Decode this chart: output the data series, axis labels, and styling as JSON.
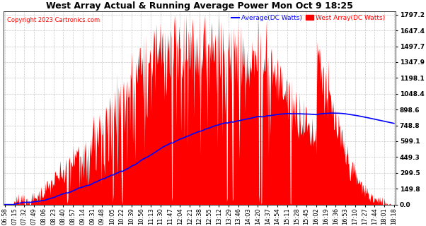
{
  "title": "West Array Actual & Running Average Power Mon Oct 9 18:25",
  "copyright": "Copyright 2023 Cartronics.com",
  "legend_avg": "Average(DC Watts)",
  "legend_west": "West Array(DC Watts)",
  "y_ticks": [
    0.0,
    149.8,
    299.5,
    449.3,
    599.1,
    748.8,
    898.6,
    1048.4,
    1198.1,
    1347.9,
    1497.7,
    1647.4,
    1797.2
  ],
  "ymax": 1797.2,
  "ymin": 0.0,
  "fill_color": "#FF0000",
  "line_color": "#0000FF",
  "bg_color": "#FFFFFF",
  "grid_color": "#BBBBBB",
  "title_color": "#000000",
  "copyright_color": "#FF0000",
  "legend_avg_color": "#0000FF",
  "legend_west_color": "#FF0000",
  "x_tick_labels": [
    "06:58",
    "07:15",
    "07:32",
    "07:49",
    "08:06",
    "08:23",
    "08:40",
    "08:57",
    "09:14",
    "09:31",
    "09:48",
    "10:05",
    "10:22",
    "10:39",
    "10:56",
    "11:13",
    "11:30",
    "11:47",
    "12:04",
    "12:21",
    "12:38",
    "12:55",
    "13:12",
    "13:29",
    "13:46",
    "14:03",
    "14:20",
    "14:37",
    "14:54",
    "15:11",
    "15:28",
    "15:45",
    "16:02",
    "16:19",
    "16:36",
    "16:53",
    "17:10",
    "17:27",
    "17:44",
    "18:01",
    "18:18"
  ]
}
